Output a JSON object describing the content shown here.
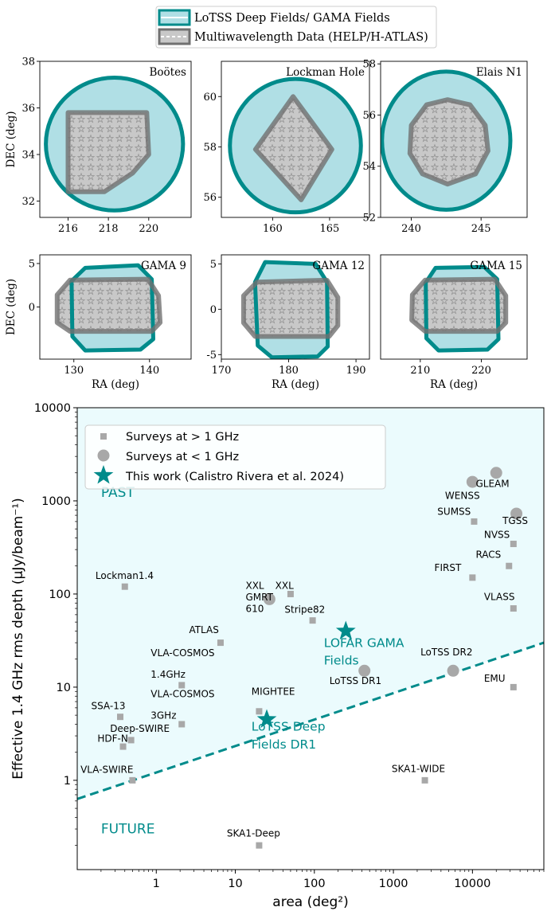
{
  "colors": {
    "teal": "#008b8b",
    "teal_fill": "#b0dfe5",
    "gray_edge": "#707070",
    "gray_fill": "#c8c8c8",
    "star_edge": "#909090",
    "point_gray": "#a8a8a8",
    "region_fill": "#ebfbfd"
  },
  "legend_top": {
    "placement": "top-center",
    "entries": [
      {
        "label": "LoTSS Deep Fields/ GAMA Fields"
      },
      {
        "label": "Multiwavelength Data (HELP/H-ATLAS)"
      }
    ]
  },
  "chart_data": [
    {
      "type": "area",
      "title": "Boötes",
      "xlabel": "",
      "ylabel": "DEC (deg)",
      "xlim": [
        214.6,
        222.1
      ],
      "ylim": [
        31.3,
        38.0
      ],
      "xticks": [
        "216",
        "218",
        "220"
      ],
      "yticks": [
        "32",
        "34",
        "36",
        "38"
      ],
      "outer": {
        "shape": "ellipse",
        "cx": 218.3,
        "cy": 34.45,
        "rx": 3.4,
        "ry": 2.85
      },
      "inner": {
        "shape": "polygon",
        "points": [
          [
            216.0,
            35.8
          ],
          [
            219.9,
            35.8
          ],
          [
            220.0,
            34.0
          ],
          [
            219.2,
            33.2
          ],
          [
            217.8,
            32.4
          ],
          [
            216.0,
            32.4
          ]
        ]
      }
    },
    {
      "type": "area",
      "title": "Lockman Hole",
      "xlabel": "",
      "ylabel": "",
      "xlim": [
        155.5,
        168.5
      ],
      "ylim": [
        55.2,
        61.4
      ],
      "xticks": [
        "160",
        "165"
      ],
      "yticks": [
        "56",
        "58",
        "60"
      ],
      "outer": {
        "shape": "ellipse",
        "cx": 162.0,
        "cy": 58.05,
        "rx": 5.75,
        "ry": 2.65
      },
      "inner": {
        "shape": "polygon",
        "points": [
          [
            161.8,
            60.0
          ],
          [
            165.2,
            57.9
          ],
          [
            162.5,
            55.9
          ],
          [
            158.5,
            57.9
          ]
        ]
      }
    },
    {
      "type": "area",
      "title": "Elais N1",
      "xlabel": "",
      "ylabel": "",
      "xlim": [
        237.8,
        248.3
      ],
      "ylim": [
        52.0,
        58.1
      ],
      "xticks": [
        "240",
        "245"
      ],
      "yticks": [
        "52",
        "54",
        "56",
        "58"
      ],
      "outer": {
        "shape": "ellipse",
        "cx": 242.5,
        "cy": 55.0,
        "rx": 4.6,
        "ry": 2.7
      },
      "inner": {
        "shape": "polygon",
        "points": [
          [
            242.6,
            56.6
          ],
          [
            244.2,
            56.4
          ],
          [
            245.3,
            55.6
          ],
          [
            245.5,
            54.6
          ],
          [
            244.6,
            53.7
          ],
          [
            242.6,
            53.3
          ],
          [
            240.8,
            53.7
          ],
          [
            239.9,
            54.5
          ],
          [
            240.0,
            55.6
          ],
          [
            241.1,
            56.4
          ]
        ]
      }
    },
    {
      "type": "area",
      "title": "GAMA 9",
      "xlabel": "RA (deg)",
      "ylabel": "DEC (deg)",
      "xlim": [
        125.5,
        145.5
      ],
      "ylim": [
        -6.0,
        6.0
      ],
      "xticks": [
        "130",
        "140"
      ],
      "yticks": [
        "0",
        "5"
      ],
      "outer": {
        "shape": "polygon",
        "points": [
          [
            131.5,
            4.5
          ],
          [
            138.5,
            4.8
          ],
          [
            140.3,
            3.2
          ],
          [
            140.5,
            -3.7
          ],
          [
            138.8,
            -4.9
          ],
          [
            131.5,
            -5.0
          ],
          [
            129.8,
            -3.4
          ],
          [
            129.7,
            3.0
          ]
        ]
      },
      "inner": {
        "shape": "polygon",
        "points": [
          [
            129.5,
            3.1
          ],
          [
            139.8,
            3.2
          ],
          [
            141.2,
            1.3
          ],
          [
            141.4,
            -1.8
          ],
          [
            140.3,
            -2.8
          ],
          [
            129.5,
            -2.8
          ],
          [
            127.8,
            -1.8
          ],
          [
            127.8,
            1.4
          ]
        ]
      }
    },
    {
      "type": "area",
      "title": "GAMA 12",
      "xlabel": "RA (deg)",
      "ylabel": "",
      "xlim": [
        170.0,
        192.0
      ],
      "ylim": [
        -5.5,
        6.0
      ],
      "xticks": [
        "170",
        "180",
        "190"
      ],
      "yticks": [
        "-5",
        "0",
        "5"
      ],
      "outer": {
        "shape": "polygon",
        "points": [
          [
            176.5,
            5.2
          ],
          [
            184.0,
            5.0
          ],
          [
            185.7,
            3.0
          ],
          [
            185.8,
            -4.1
          ],
          [
            184.3,
            -5.2
          ],
          [
            177.5,
            -5.3
          ],
          [
            175.4,
            -4.0
          ],
          [
            175.0,
            3.0
          ]
        ]
      },
      "inner": {
        "shape": "polygon",
        "points": [
          [
            175.3,
            3.0
          ],
          [
            185.7,
            3.2
          ],
          [
            187.3,
            1.3
          ],
          [
            187.3,
            -1.8
          ],
          [
            186.0,
            -3.0
          ],
          [
            175.0,
            -3.0
          ],
          [
            173.3,
            -1.5
          ],
          [
            173.3,
            1.5
          ]
        ]
      }
    },
    {
      "type": "area",
      "title": "GAMA 15",
      "xlabel": "RA (deg)",
      "ylabel": "",
      "xlim": [
        203.5,
        227.5
      ],
      "ylim": [
        -6.0,
        6.0
      ],
      "xticks": [
        "210",
        "220"
      ],
      "yticks": [],
      "outer": {
        "shape": "polygon",
        "points": [
          [
            212.5,
            4.5
          ],
          [
            220.5,
            4.6
          ],
          [
            222.6,
            3.2
          ],
          [
            222.8,
            -3.7
          ],
          [
            221.0,
            -4.9
          ],
          [
            213.0,
            -5.0
          ],
          [
            211.0,
            -3.6
          ],
          [
            210.9,
            2.8
          ]
        ]
      },
      "inner": {
        "shape": "polygon",
        "points": [
          [
            210.8,
            3.1
          ],
          [
            222.2,
            3.2
          ],
          [
            224.0,
            1.3
          ],
          [
            224.0,
            -1.8
          ],
          [
            222.6,
            -2.8
          ],
          [
            210.8,
            -2.8
          ],
          [
            208.6,
            -1.5
          ],
          [
            208.7,
            1.4
          ]
        ]
      }
    },
    {
      "type": "scatter",
      "title": "",
      "xlabel": "area (deg²)",
      "ylabel": "Effective 1.4 GHz rms depth (µJy/beam⁻¹)",
      "xscale": "log",
      "yscale": "log",
      "xlim": [
        0.1,
        80000
      ],
      "ylim": [
        0.11,
        10000
      ],
      "xticks": [
        "1",
        "10",
        "100",
        "1000",
        "10000"
      ],
      "yticks": [
        "1",
        "10",
        "100",
        "1000",
        "10000"
      ],
      "legend": {
        "placement": "top-left",
        "entries": [
          {
            "label": "Surveys at > 1 GHz",
            "marker": "square"
          },
          {
            "label": "Surveys at < 1 GHz",
            "marker": "circle"
          },
          {
            "label": "This work (Calistro Rivera et al. 2024)",
            "marker": "star"
          }
        ]
      },
      "region_labels": [
        {
          "text": "PAST",
          "x": 0.2,
          "y": 1100
        },
        {
          "text": "FUTURE",
          "x": 0.2,
          "y": 0.27
        }
      ],
      "boundary_line": {
        "style": "dashed",
        "points": [
          [
            0.1,
            0.63
          ],
          [
            80000,
            30
          ]
        ]
      },
      "series": [
        {
          "name": "Surveys at > 1 GHz",
          "marker": "square",
          "points": [
            {
              "label": "Lockman1.4",
              "x": 0.4,
              "y": 120
            },
            {
              "label": "VLA-SWIRE",
              "x": 0.5,
              "y": 1.0
            },
            {
              "label": "SSA-13",
              "x": 0.35,
              "y": 4.8
            },
            {
              "label": "HDF-N",
              "x": 0.38,
              "y": 2.3
            },
            {
              "label": "Deep-SWIRE",
              "x": 0.48,
              "y": 2.7
            },
            {
              "label": "VLA-COSMOS 1.4GHz",
              "x": 2.1,
              "y": 10.5
            },
            {
              "label": "VLA-COSMOS 3GHz",
              "x": 2.1,
              "y": 4.0
            },
            {
              "label": "ATLAS",
              "x": 6.5,
              "y": 30
            },
            {
              "label": "MIGHTEE",
              "x": 20,
              "y": 5.5
            },
            {
              "label": "SKA1-Deep",
              "x": 20,
              "y": 0.2
            },
            {
              "label": "XXL",
              "x": 50,
              "y": 100
            },
            {
              "label": "Stripe82",
              "x": 95,
              "y": 52
            },
            {
              "label": "SKA1-WIDE",
              "x": 2500,
              "y": 1.0
            },
            {
              "label": "SUMSS",
              "x": 10500,
              "y": 600
            },
            {
              "label": "FIRST",
              "x": 10000,
              "y": 150
            },
            {
              "label": "RACS",
              "x": 29000,
              "y": 200
            },
            {
              "label": "NVSS",
              "x": 33000,
              "y": 345
            },
            {
              "label": "VLASS",
              "x": 33000,
              "y": 70
            },
            {
              "label": "EMU",
              "x": 33000,
              "y": 10
            }
          ]
        },
        {
          "name": "Surveys at < 1 GHz",
          "marker": "circle",
          "points": [
            {
              "label": "GMRT 610",
              "x": 27,
              "y": 88
            },
            {
              "label": "LoTSS DR1",
              "x": 430,
              "y": 15
            },
            {
              "label": "LoTSS DR2",
              "x": 5700,
              "y": 15
            },
            {
              "label": "WENSS",
              "x": 10000,
              "y": 1600
            },
            {
              "label": "GLEAM",
              "x": 20000,
              "y": 2000
            },
            {
              "label": "TGSS",
              "x": 36000,
              "y": 730
            }
          ]
        },
        {
          "name": "This work (Calistro Rivera et al. 2024)",
          "marker": "star",
          "points": [
            {
              "label": "LOFAR GAMA Fields",
              "x": 250,
              "y": 40
            },
            {
              "label": "LoTSS Deep Fields DR1",
              "x": 25,
              "y": 4.5
            }
          ]
        }
      ],
      "annotations": [
        {
          "text": "Lockman1.4",
          "x": 0.17,
          "y": 145,
          "color": "black"
        },
        {
          "text": "VLA-SWIRE",
          "x": 0.11,
          "y": 1.2,
          "color": "black"
        },
        {
          "text": "SSA-13",
          "x": 0.15,
          "y": 5.8,
          "color": "black"
        },
        {
          "text": "Deep-SWIRE",
          "x": 0.26,
          "y": 3.3,
          "color": "black"
        },
        {
          "text": "HDF-N",
          "x": 0.18,
          "y": 2.6,
          "color": "black"
        },
        {
          "text": "VLA-COSMOS",
          "x": 0.85,
          "y": 21.5,
          "color": "black"
        },
        {
          "text": "1.4GHz",
          "x": 0.85,
          "y": 12.6,
          "color": "black"
        },
        {
          "text": "VLA-COSMOS",
          "x": 0.85,
          "y": 7.8,
          "color": "black"
        },
        {
          "text": "3GHz",
          "x": 0.85,
          "y": 4.6,
          "color": "black"
        },
        {
          "text": "ATLAS",
          "x": 2.6,
          "y": 38,
          "color": "black"
        },
        {
          "text": "MIGHTEE",
          "x": 16,
          "y": 8.3,
          "color": "black"
        },
        {
          "text": "SKA1-Deep",
          "x": 7.8,
          "y": 0.25,
          "color": "black"
        },
        {
          "text": "XXL",
          "x": 13.5,
          "y": 114,
          "color": "black"
        },
        {
          "text": "XXL",
          "x": 32,
          "y": 114,
          "color": "black"
        },
        {
          "text": "GMRT",
          "x": 13.5,
          "y": 85,
          "color": "black"
        },
        {
          "text": "610",
          "x": 13.5,
          "y": 64,
          "color": "black"
        },
        {
          "text": "Stripe82",
          "x": 42,
          "y": 63,
          "color": "black"
        },
        {
          "text": "LOFAR GAMA",
          "x": 132,
          "y": 27,
          "color": "teal"
        },
        {
          "text": "Fields",
          "x": 132,
          "y": 17.5,
          "color": "teal"
        },
        {
          "text": "LoTSS DR1",
          "x": 155,
          "y": 10.8,
          "color": "black"
        },
        {
          "text": "LoTSS DR2",
          "x": 2200,
          "y": 22,
          "color": "black"
        },
        {
          "text": "EMU",
          "x": 14000,
          "y": 11.4,
          "color": "black"
        },
        {
          "text": "LoTSS Deep",
          "x": 16,
          "y": 3.4,
          "color": "teal"
        },
        {
          "text": "Fields DR1",
          "x": 16,
          "y": 2.2,
          "color": "teal"
        },
        {
          "text": "SKA1-WIDE",
          "x": 950,
          "y": 1.23,
          "color": "black"
        },
        {
          "text": "SUMSS",
          "x": 3600,
          "y": 710,
          "color": "black"
        },
        {
          "text": "FIRST",
          "x": 3300,
          "y": 176,
          "color": "black"
        },
        {
          "text": "RACS",
          "x": 11000,
          "y": 245,
          "color": "black"
        },
        {
          "text": "NVSS",
          "x": 14000,
          "y": 400,
          "color": "black"
        },
        {
          "text": "VLASS",
          "x": 14000,
          "y": 86,
          "color": "black"
        },
        {
          "text": "GLEAM",
          "x": 11000,
          "y": 1410,
          "color": "black"
        },
        {
          "text": "WENSS",
          "x": 4500,
          "y": 1050,
          "color": "black"
        },
        {
          "text": "TGSS",
          "x": 24000,
          "y": 565,
          "color": "black"
        }
      ]
    }
  ]
}
